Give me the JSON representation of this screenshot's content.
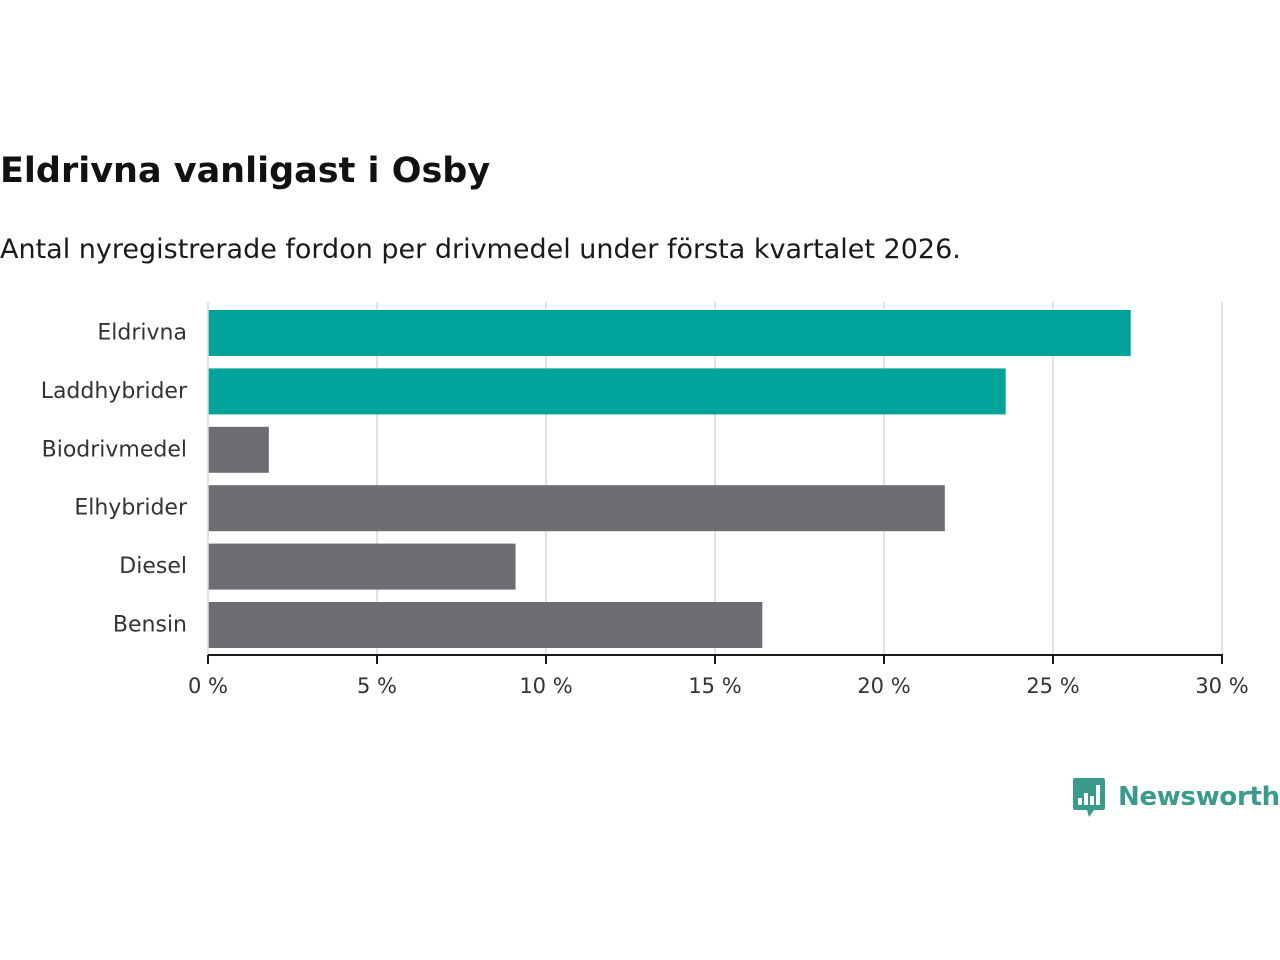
{
  "header": {
    "title": "Eldrivna vanligast i Osby",
    "subtitle": "Antal nyregistrerade fordon per drivmedel under första kvartalet 2026."
  },
  "brand": {
    "name": "Newsworthy",
    "color": "#3a9b8d",
    "icon": "bar-chart-speech-icon"
  },
  "colors": {
    "highlight": "#00a39a",
    "other": "#6e6d74",
    "grid": "#d9d9d9",
    "axis": "#1a1a1a"
  },
  "chart_data": {
    "type": "bar",
    "orientation": "horizontal",
    "title": "Eldrivna vanligast i Osby",
    "subtitle": "Antal nyregistrerade fordon per drivmedel under första kvartalet 2026.",
    "xlabel": "",
    "ylabel": "",
    "unit": "%",
    "xlim": [
      0,
      30
    ],
    "ticks": [
      0,
      5,
      10,
      15,
      20,
      25,
      30
    ],
    "tick_labels": [
      "0 %",
      "5 %",
      "10 %",
      "15 %",
      "20 %",
      "25 %",
      "30 %"
    ],
    "grid": true,
    "categories": [
      "Eldrivna",
      "Laddhybrider",
      "Biodrivmedel",
      "Elhybrider",
      "Diesel",
      "Bensin"
    ],
    "values": [
      27.3,
      23.6,
      1.8,
      21.8,
      9.1,
      16.4
    ],
    "highlighted": [
      true,
      true,
      false,
      false,
      false,
      false
    ]
  }
}
